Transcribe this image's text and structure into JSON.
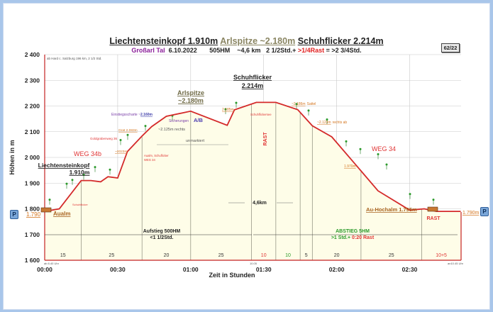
{
  "header": {
    "title_parts": [
      "Liechtensteinkopf 1.910m",
      "Arlspitze ~2.180m",
      "Schuhflicker  2.214m"
    ],
    "subtitle": {
      "valley": "Großarl Tal",
      "date": "6.10.2022",
      "elevation_gain": "505HM",
      "distance": "~4,6 km",
      "time": "2 1/2Std.+",
      "rest": ">1/4Rast",
      "total": "= >2 3/4Std."
    },
    "page_badge": "62/22"
  },
  "parking_badges": [
    "P",
    "P"
  ],
  "chart_data": {
    "type": "area",
    "title": "Liechtensteinkopf 1.910m Arlspitze ~2.180m Schuhflicker 2.214m",
    "xlabel": "Zeit in Stunden",
    "ylabel": "Höhen in m",
    "ylim": [
      1600,
      2400
    ],
    "xlim_minutes": [
      0,
      171
    ],
    "y_ticks": [
      "2 400",
      "2 300",
      "2 200",
      "2 100",
      "2 000",
      "1 900",
      "1 800",
      "1 700",
      "1 600"
    ],
    "x_ticks": [
      "00:00",
      "00:30",
      "01:00",
      "01:30",
      "02:00",
      "02:30"
    ],
    "grid": true,
    "profile": {
      "x_minutes": [
        0,
        6,
        15,
        19,
        23,
        26,
        30,
        34,
        40,
        44,
        50,
        60,
        75,
        78,
        87,
        95,
        104,
        110,
        118,
        128,
        137,
        150,
        156,
        161,
        171
      ],
      "y_meters": [
        1790,
        1800,
        1910,
        1910,
        1905,
        1925,
        1920,
        2023,
        2083,
        2120,
        2160,
        2180,
        2125,
        2185,
        2214,
        2214,
        2186,
        2123,
        2080,
        1970,
        1870,
        1795,
        1800,
        1790,
        1790
      ]
    },
    "segment_minutes": [
      {
        "label": "15",
        "color": "#333"
      },
      {
        "label": "25",
        "color": "#333"
      },
      {
        "label": "20",
        "color": "#333"
      },
      {
        "label": "25",
        "color": "#333"
      },
      {
        "label": "10",
        "color": "#e03535"
      },
      {
        "label": "10",
        "color": "#2a9a2a"
      },
      {
        "label": "5",
        "color": "#333"
      },
      {
        "label": "20",
        "color": "#333"
      },
      {
        "label": "25",
        "color": "#333"
      },
      {
        "label": "10+5",
        "color": "#e03535"
      }
    ],
    "annotations": {
      "start_note": "ab Hard c. Salzburg 196 km, 2 1/2 Std.",
      "start_time": "ab 8.40 Uhr",
      "summit_time": "10.05",
      "end_time": "an10.45 Uhr",
      "liechtensteinkopf": "Liechtensteinkopf",
      "liechtensteinkopf_alt": "1.910m",
      "arlspitze": "Arlspitze",
      "arlspitze_alt": "~2.180m",
      "schuhflicker": "Schuhflicker",
      "schuhflicker_alt": "2.214m",
      "aualm": "Aualm",
      "start_alt": "1.790",
      "weg34b": "WEG 34b",
      "weg34": "WEG 34",
      "schuhflicker_sign": "Schuhflicker",
      "goldgrabenweg": "Goldgrabenweg 36",
      "alt_2023": "~2023m",
      "aualm_sign_1": "Aualm, Schuflicker",
      "aualm_sign_2": "WEG 34",
      "grat": "Grat 2.083m",
      "einstieg": "Einstiegsscharte ~",
      "einstieg_alt": "2.160m",
      "rechts_2125": "~2.125m rechts",
      "sicherungen": "Sicherungen",
      "ab_label": "A/B",
      "unmarkiert": "unmarkiert",
      "alt_2185": "2.185m",
      "schuhflickersee": "Schuhflickersee",
      "rast_summit": "RAST",
      "sattel_alt": "~2.186m",
      "sattel": "Sattel",
      "rechts_ab_alt": "~2.123m",
      "rechts_ab": "rechts ab",
      "alt_1970": "1.970m",
      "distance": "4,6km",
      "au_hochalm": "Au-Hochalm 1.795m",
      "rast_hut": "RAST",
      "end_alt": "1.790m",
      "aufstieg_1": "Aufstieg 500HM",
      "aufstieg_2": "<1 1/2Std.",
      "abstieg_1": "ABSTIEG 5HM",
      "abstieg_2a": ">1 Std.+",
      "abstieg_2b": " 0:20 Rast"
    }
  },
  "colors": {
    "profile_line": "#d42a2a",
    "area_fill": "#fefde8",
    "orange_label": "#d4751f",
    "red_label": "#e03535",
    "green_label": "#2a9a2a",
    "purple_label": "#7a3fa8",
    "frame_bg": "#a9c6ea"
  }
}
